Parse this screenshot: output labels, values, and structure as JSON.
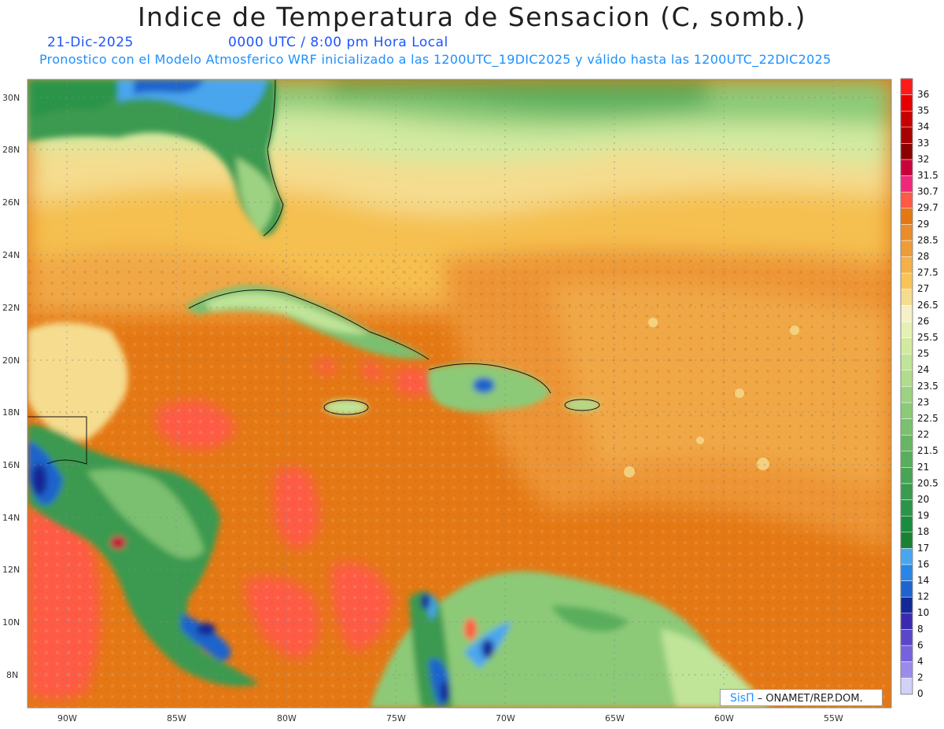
{
  "title": "Indice de Temperatura de Sensacion (C, somb.)",
  "date": "21-Dic-2025",
  "time": "0000 UTC / 8:00 pm Hora Local",
  "description": "Pronostico con el Modelo Atmosferico WRF inicializado a las 1200UTC_19DIC2025 y válido hasta las  1200UTC_22DIC2025",
  "lat_labels": [
    "30N",
    "28N",
    "26N",
    "24N",
    "22N",
    "20N",
    "18N",
    "16N",
    "14N",
    "12N",
    "10N",
    "8N"
  ],
  "lon_labels": [
    "90W",
    "85W",
    "80W",
    "75W",
    "70W",
    "65W",
    "60W",
    "55W"
  ],
  "colorbar": {
    "labels": [
      "36",
      "35",
      "34",
      "33",
      "32",
      "31.5",
      "30.7",
      "29.7",
      "29",
      "28.5",
      "28",
      "27.5",
      "27",
      "26.5",
      "26",
      "25.5",
      "25",
      "24",
      "23.5",
      "23",
      "22.5",
      "22",
      "21.5",
      "21",
      "20.5",
      "20",
      "19",
      "18",
      "17",
      "16",
      "14",
      "12",
      "10",
      "8",
      "6",
      "4",
      "2",
      "0"
    ],
    "colors": [
      "#ff1a1a",
      "#e50000",
      "#c80000",
      "#a80000",
      "#8c0000",
      "#c8003c",
      "#f0287a",
      "#ff5a46",
      "#e47814",
      "#e98c2c",
      "#ee9c3a",
      "#f4b04a",
      "#f6c458",
      "#f5dc8e",
      "#f6f0c8",
      "#e6f0b4",
      "#d2eaa0",
      "#c0e498",
      "#b0dc8c",
      "#9cd282",
      "#8cca78",
      "#7ac070",
      "#68b664",
      "#58ae5c",
      "#48a455",
      "#3a9a4f",
      "#2c9448",
      "#1a8c3e",
      "#1a8032",
      "#4aa6ee",
      "#2a86e4",
      "#1e64cc",
      "#142896",
      "#3a2ab0",
      "#5a46c8",
      "#7862dc",
      "#9a8cea",
      "#d2d2f8"
    ]
  },
  "credit": {
    "brand": "SisΠ",
    "sep": " – ",
    "org": "ONAMET/REP.DOM."
  },
  "colors": {
    "sea_warm": "#e47814",
    "land_green": "#3cb464",
    "frame": "#888888"
  }
}
